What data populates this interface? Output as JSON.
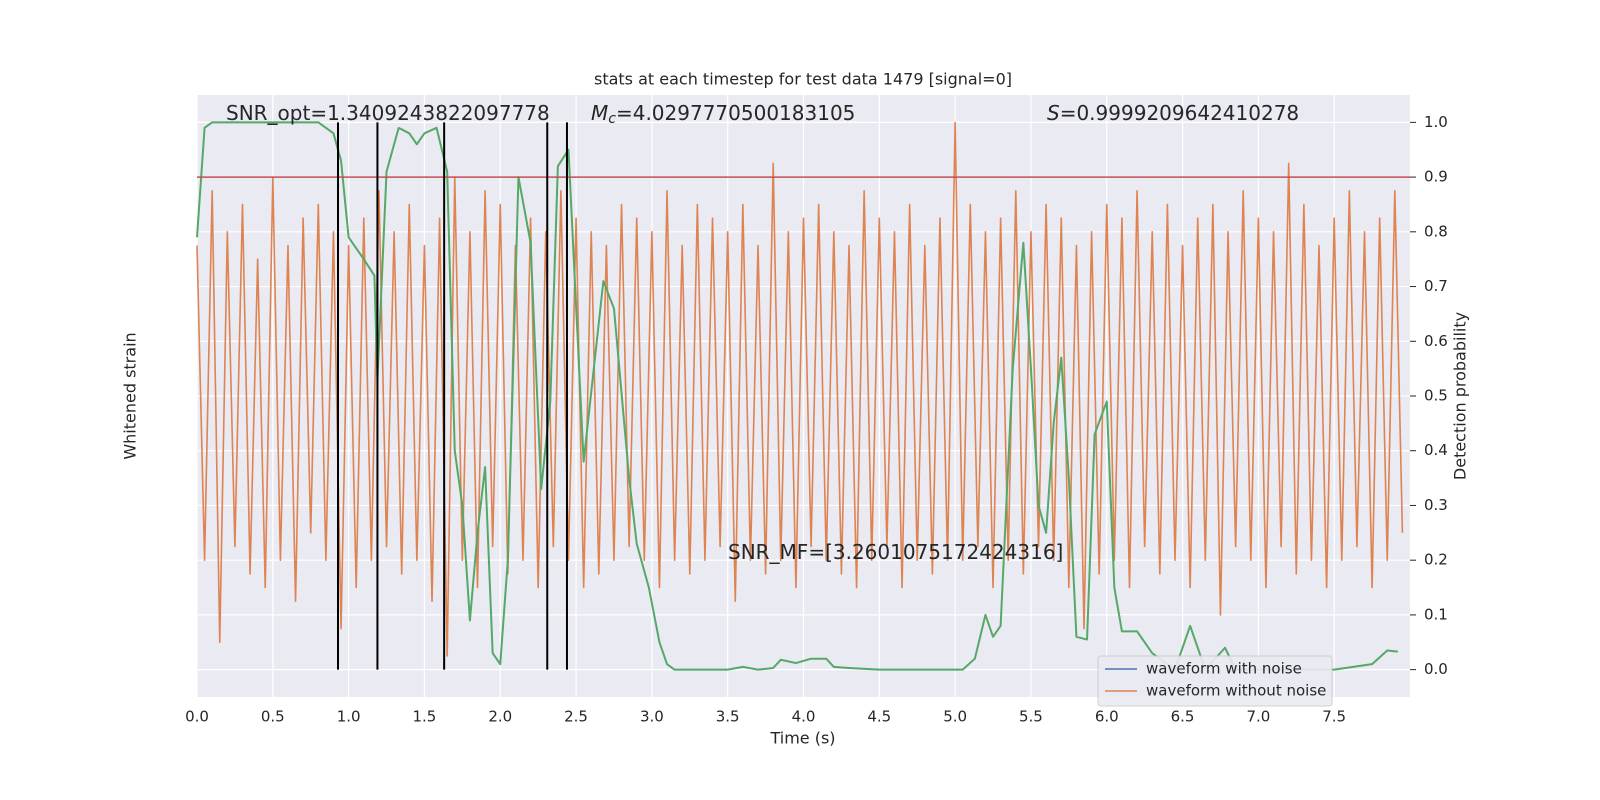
{
  "chart_data": {
    "type": "line",
    "title": "stats at each timestep for test data 1479 [signal=0]",
    "xlabel": "Time (s)",
    "ylabel": "Whitened strain",
    "y2label": "Detection probability",
    "xlim": [
      0,
      8.0
    ],
    "ylim": [
      -1.1,
      1.1
    ],
    "y2lim": [
      -0.05,
      1.05
    ],
    "grid": true,
    "xticks": [
      {
        "value": 0,
        "label": "0.0"
      },
      {
        "value": 0.5,
        "label": "0.5"
      },
      {
        "value": 1,
        "label": "1.0"
      },
      {
        "value": 1.5,
        "label": "1.5"
      },
      {
        "value": 2,
        "label": "2.0"
      },
      {
        "value": 2.5,
        "label": "2.5"
      },
      {
        "value": 3,
        "label": "3.0"
      },
      {
        "value": 3.5,
        "label": "3.5"
      },
      {
        "value": 4,
        "label": "4.0"
      },
      {
        "value": 4.5,
        "label": "4.5"
      },
      {
        "value": 5,
        "label": "5.0"
      },
      {
        "value": 5.5,
        "label": "5.5"
      },
      {
        "value": 6,
        "label": "6.0"
      },
      {
        "value": 6.5,
        "label": "6.5"
      },
      {
        "value": 7,
        "label": "7.0"
      },
      {
        "value": 7.5,
        "label": "7.5"
      }
    ],
    "y2ticks": [
      {
        "value": 0,
        "label": "0.0"
      },
      0.1,
      0.2,
      0.3,
      0.4,
      0.5,
      0.6,
      0.7,
      0.8,
      0.9,
      {
        "value": 1,
        "label": "1.0"
      }
    ],
    "legend": [
      {
        "name": "waveform with noise",
        "color": "#4c72b0"
      },
      {
        "name": "waveform without noise",
        "color": "#dd8452"
      }
    ],
    "series": [
      {
        "name": "waveform without noise",
        "color": "#dd8452",
        "axis": "y",
        "x": [
          0,
          0.05,
          0.1,
          0.15,
          0.2,
          0.25,
          0.3,
          0.35,
          0.4,
          0.45,
          0.5,
          0.55,
          0.6,
          0.65,
          0.7,
          0.75,
          0.8,
          0.85,
          0.9,
          0.95,
          1,
          1.05,
          1.1,
          1.15,
          1.2,
          1.25,
          1.3,
          1.35,
          1.4,
          1.45,
          1.5,
          1.55,
          1.6,
          1.65,
          1.7,
          1.75,
          1.8,
          1.85,
          1.9,
          1.95,
          2,
          2.05,
          2.1,
          2.15,
          2.2,
          2.25,
          2.3,
          2.35,
          2.4,
          2.45,
          2.5,
          2.55,
          2.6,
          2.65,
          2.7,
          2.75,
          2.8,
          2.85,
          2.9,
          2.95,
          3,
          3.05,
          3.1,
          3.15,
          3.2,
          3.25,
          3.3,
          3.35,
          3.4,
          3.45,
          3.5,
          3.55,
          3.6,
          3.65,
          3.7,
          3.75,
          3.8,
          3.85,
          3.9,
          3.95,
          4,
          4.05,
          4.1,
          4.15,
          4.2,
          4.25,
          4.3,
          4.35,
          4.4,
          4.45,
          4.5,
          4.55,
          4.6,
          4.65,
          4.7,
          4.75,
          4.8,
          4.85,
          4.9,
          4.95,
          5,
          5.05,
          5.1,
          5.15,
          5.2,
          5.25,
          5.3,
          5.35,
          5.4,
          5.45,
          5.5,
          5.55,
          5.6,
          5.65,
          5.7,
          5.75,
          5.8,
          5.85,
          5.9,
          5.95,
          6,
          6.05,
          6.1,
          6.15,
          6.2,
          6.25,
          6.3,
          6.35,
          6.4,
          6.45,
          6.5,
          6.55,
          6.6,
          6.65,
          6.7,
          6.75,
          6.8,
          6.85,
          6.9,
          6.95,
          7,
          7.05,
          7.1,
          7.15,
          7.2,
          7.25,
          7.3,
          7.35,
          7.4,
          7.45,
          7.5,
          7.55,
          7.6,
          7.65,
          7.7,
          7.75,
          7.8,
          7.85,
          7.9,
          7.95
        ],
        "values": [
          0.55,
          -0.6,
          0.75,
          -0.9,
          0.6,
          -0.55,
          0.7,
          -0.65,
          0.5,
          -0.7,
          0.8,
          -0.6,
          0.55,
          -0.75,
          0.65,
          -0.5,
          0.7,
          -0.6,
          0.6,
          -0.85,
          0.55,
          -0.7,
          0.65,
          -0.6,
          0.75,
          -0.55,
          0.6,
          -0.65,
          0.7,
          -0.6,
          0.55,
          -0.75,
          0.65,
          -0.95,
          0.8,
          -0.6,
          0.6,
          -0.7,
          0.75,
          -0.55,
          0.7,
          -0.65,
          0.55,
          -0.6,
          0.65,
          -0.7,
          0.6,
          -0.55,
          0.75,
          -0.6,
          0.65,
          -0.7,
          0.6,
          -0.65,
          0.55,
          -0.6,
          0.7,
          -0.55,
          0.65,
          -0.6,
          0.6,
          -0.7,
          0.75,
          -0.6,
          0.55,
          -0.65,
          0.7,
          -0.6,
          0.65,
          -0.55,
          0.6,
          -0.75,
          0.7,
          -0.6,
          0.55,
          -0.65,
          0.85,
          -0.6,
          0.6,
          -0.7,
          0.65,
          -0.55,
          0.7,
          -0.6,
          0.6,
          -0.65,
          0.55,
          -0.7,
          0.75,
          -0.6,
          0.65,
          -0.55,
          0.6,
          -0.7,
          0.7,
          -0.6,
          0.55,
          -0.65,
          0.65,
          -0.6,
          1.0,
          -0.6,
          0.7,
          -0.55,
          0.6,
          -0.7,
          0.65,
          -0.6,
          0.75,
          -0.65,
          0.6,
          -0.55,
          0.7,
          -0.6,
          0.65,
          -0.7,
          0.55,
          -0.85,
          0.6,
          -0.65,
          0.7,
          -0.6,
          0.65,
          -0.7,
          0.75,
          -0.55,
          0.6,
          -0.65,
          0.7,
          -0.6,
          0.55,
          -0.7,
          0.65,
          -0.6,
          0.7,
          -0.8,
          0.6,
          -0.55,
          0.75,
          -0.6,
          0.65,
          -0.7,
          0.6,
          -0.55,
          0.85,
          -0.65,
          0.7,
          -0.6,
          0.55,
          -0.7,
          0.65,
          -0.6,
          0.75,
          -0.55,
          0.6,
          -0.7,
          0.65,
          -0.6,
          0.75,
          -0.5
        ]
      },
      {
        "color": "#55a868",
        "axis": "y2",
        "x": [
          0,
          0.05,
          0.1,
          0.3,
          0.6,
          0.8,
          0.85,
          0.9,
          0.95,
          1.0,
          1.1,
          1.17,
          1.19,
          1.25,
          1.33,
          1.4,
          1.45,
          1.5,
          1.58,
          1.65,
          1.7,
          1.75,
          1.8,
          1.85,
          1.9,
          1.95,
          2.0,
          2.05,
          2.12,
          2.2,
          2.27,
          2.33,
          2.38,
          2.45,
          2.55,
          2.68,
          2.75,
          2.85,
          2.9,
          2.98,
          3.05,
          3.1,
          3.15,
          3.5,
          3.6,
          3.7,
          3.8,
          3.85,
          3.95,
          4.05,
          4.15,
          4.2,
          4.3,
          4.5,
          5.05,
          5.13,
          5.2,
          5.25,
          5.3,
          5.38,
          5.45,
          5.5,
          5.55,
          5.6,
          5.65,
          5.7,
          5.75,
          5.8,
          5.87,
          5.92,
          6.0,
          6.05,
          6.1,
          6.2,
          6.3,
          6.45,
          6.55,
          6.65,
          6.78,
          6.85,
          7.5,
          7.75,
          7.85,
          7.92
        ],
        "values": [
          0.79,
          0.99,
          1.0,
          1.0,
          1.0,
          1.0,
          0.99,
          0.98,
          0.93,
          0.79,
          0.75,
          0.72,
          0.53,
          0.91,
          0.99,
          0.98,
          0.96,
          0.98,
          0.99,
          0.91,
          0.4,
          0.3,
          0.09,
          0.25,
          0.37,
          0.03,
          0.01,
          0.2,
          0.9,
          0.78,
          0.33,
          0.49,
          0.92,
          0.95,
          0.38,
          0.71,
          0.66,
          0.35,
          0.23,
          0.15,
          0.05,
          0.01,
          0.0,
          0.0,
          0.005,
          0.0,
          0.003,
          0.018,
          0.012,
          0.02,
          0.02,
          0.005,
          0.003,
          0.0,
          0.0,
          0.02,
          0.1,
          0.06,
          0.08,
          0.55,
          0.78,
          0.55,
          0.3,
          0.25,
          0.45,
          0.57,
          0.35,
          0.06,
          0.055,
          0.43,
          0.49,
          0.15,
          0.07,
          0.07,
          0.03,
          0.0,
          0.08,
          0.0,
          0.04,
          0.0,
          0.0,
          0.01,
          0.035,
          0.033
        ]
      }
    ],
    "threshold": {
      "value": 0.9,
      "color": "#c44e52"
    },
    "vlines": [
      0.93,
      1.19,
      1.63,
      2.31,
      2.44
    ],
    "annotations": [
      {
        "text": "SNR_opt=1.3409243822097778"
      },
      {
        "symbol": "M",
        "sub": "c",
        "text": "=4.0297770500183105"
      },
      {
        "symbol": "S",
        "text": "=0.9999209642410278"
      },
      {
        "text": "SNR_MF=[3.2601075172424316]"
      }
    ]
  }
}
